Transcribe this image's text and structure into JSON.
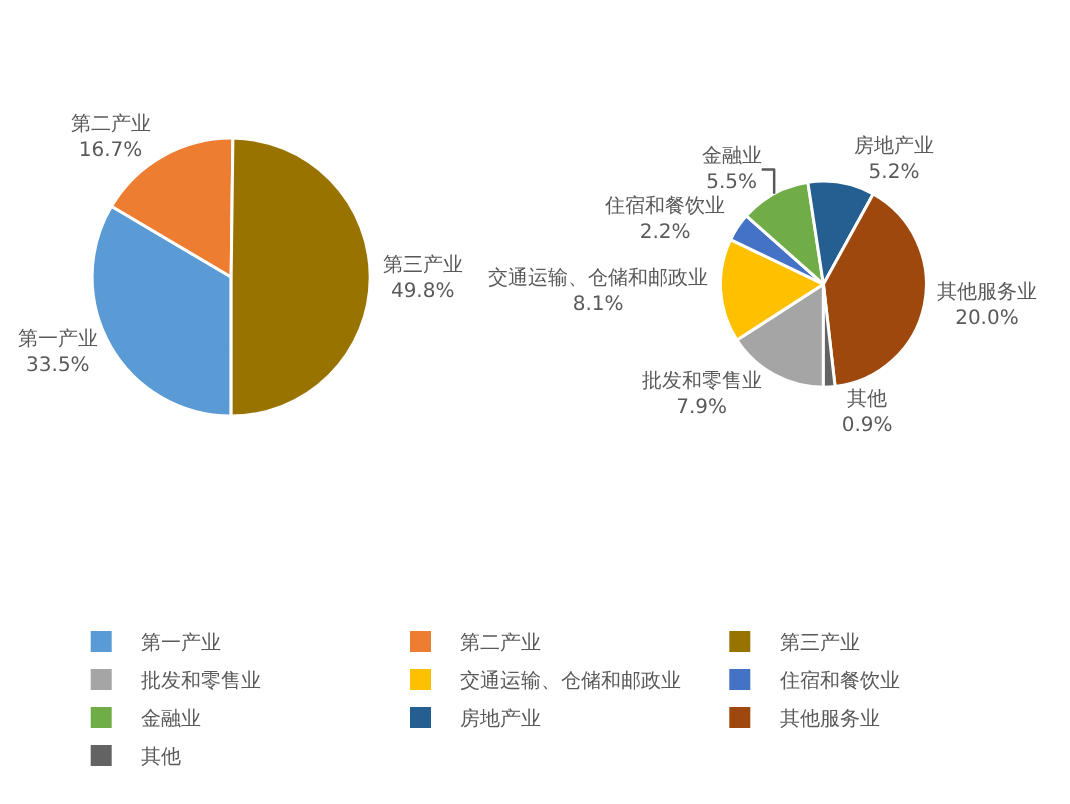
{
  "chart_data": [
    {
      "type": "pie",
      "categories": [
        "第一产业",
        "第二产业",
        "第三产业"
      ],
      "values": [
        33.5,
        16.7,
        49.8
      ],
      "colors": [
        "#5b9bd5",
        "#ed7d31",
        "#997300"
      ],
      "value_labels": [
        "33.5%",
        "16.7%",
        "49.8%"
      ],
      "legend": "bottom"
    },
    {
      "type": "pie",
      "categories": [
        "批发和零售业",
        "交通运输、仓储和邮政业",
        "住宿和餐饮业",
        "金融业",
        "房地产业",
        "其他服务业",
        "其他"
      ],
      "values": [
        7.9,
        8.1,
        2.2,
        5.5,
        5.2,
        20.0,
        0.9
      ],
      "colors": [
        "#a5a5a5",
        "#ffc000",
        "#4472c4",
        "#70ad47",
        "#255e91",
        "#9e480e",
        "#636363"
      ],
      "value_labels": [
        "7.9%",
        "8.1%",
        "2.2%",
        "5.5%",
        "5.2%",
        "20.0%",
        "0.9%"
      ],
      "legend": "bottom"
    }
  ]
}
